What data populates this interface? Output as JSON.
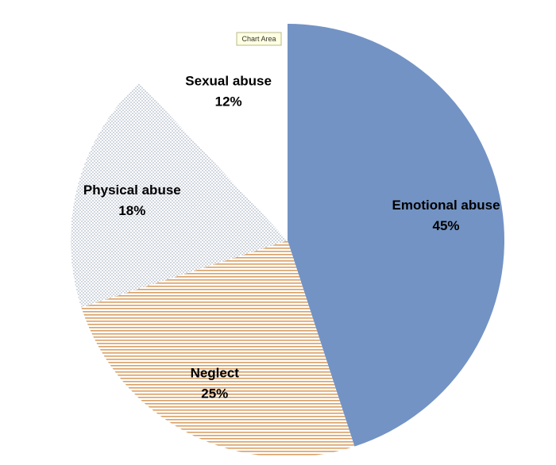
{
  "chart_data": {
    "type": "pie",
    "tooltip": "Chart Area",
    "categories": [
      "Emotional abuse",
      "Neglect",
      "Physical abuse",
      "Sexual abuse"
    ],
    "values": [
      45,
      25,
      18,
      12
    ],
    "value_labels": [
      "45%",
      "25%",
      "18%",
      "12%"
    ],
    "colors": [
      "#7393c4",
      "#d9a066",
      "#8a9aae",
      "#ffffff"
    ],
    "patterns": [
      "solid",
      "horizontal-stripes",
      "dots",
      "solid"
    ]
  }
}
